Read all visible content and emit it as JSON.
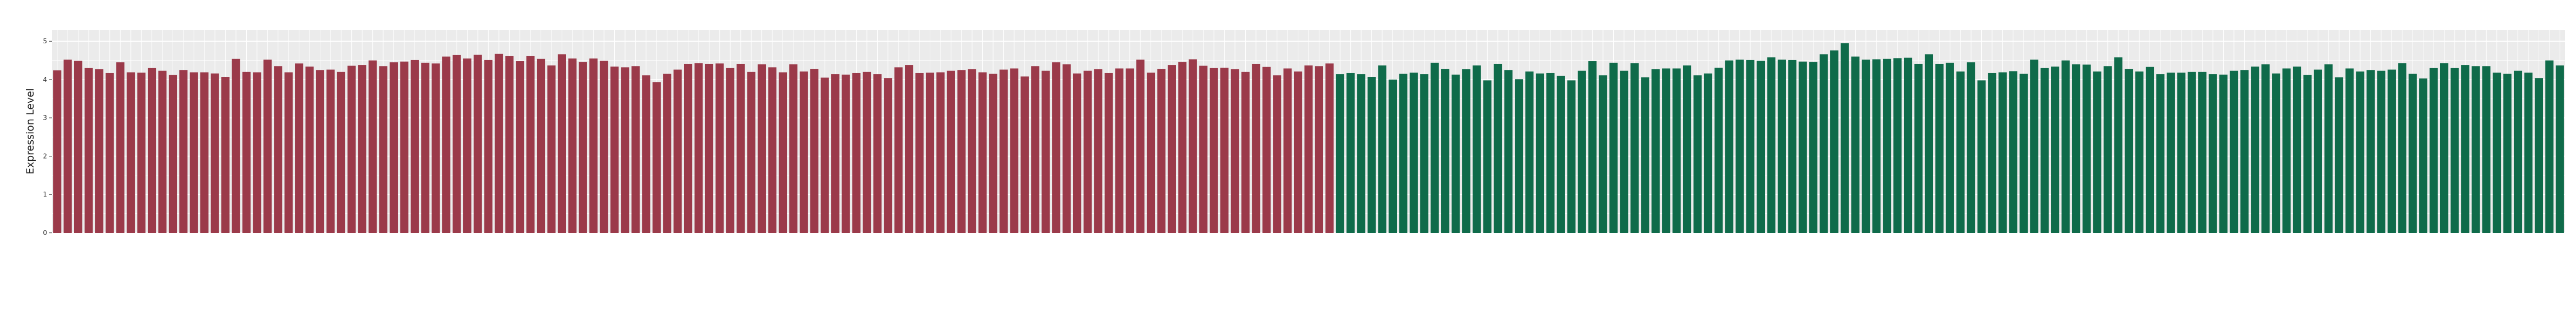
{
  "chart_data": {
    "type": "bar",
    "title": "",
    "xlabel": "",
    "ylabel": "Expression Level",
    "ylim": [
      0,
      5.3
    ],
    "yticks": [
      0,
      1,
      2,
      3,
      4,
      5
    ],
    "grid": true,
    "legend": "none",
    "colors": {
      "group_a": "#9b3a4a",
      "group_b": "#0f6b4a",
      "panel_bg": "#ebebeb",
      "grid": "#ffffff"
    },
    "series": [
      {
        "values": [
          4.24,
          4.52,
          4.49,
          4.3,
          4.27,
          4.17,
          4.45,
          4.19,
          4.18,
          4.3,
          4.23,
          4.12,
          4.25,
          4.19,
          4.19,
          4.16,
          4.07,
          4.54,
          4.2,
          4.19,
          4.52,
          4.35,
          4.19,
          4.42,
          4.34,
          4.25,
          4.26,
          4.2,
          4.36,
          4.38,
          4.5,
          4.35,
          4.45,
          4.47,
          4.51,
          4.44,
          4.42,
          4.6,
          4.64,
          4.55,
          4.65,
          4.51,
          4.67,
          4.62,
          4.48,
          4.62,
          4.54,
          4.37,
          4.66,
          4.55,
          4.46,
          4.55,
          4.49,
          4.34,
          4.32,
          4.35,
          4.11,
          3.93,
          4.15,
          4.26,
          4.41,
          4.43,
          4.41,
          4.42,
          4.3,
          4.41,
          4.2,
          4.4,
          4.32,
          4.19,
          4.4,
          4.21,
          4.28,
          4.05,
          4.14,
          4.13,
          4.17,
          4.2,
          4.14,
          4.04,
          4.32,
          4.38,
          4.17,
          4.18,
          4.19,
          4.23,
          4.25,
          4.27,
          4.19,
          4.15,
          4.26,
          4.29,
          4.08,
          4.35,
          4.23,
          4.45,
          4.4,
          4.16,
          4.23,
          4.27,
          4.17,
          4.29,
          4.29,
          4.52,
          4.18,
          4.28,
          4.38,
          4.46,
          4.53,
          4.36,
          4.3,
          4.31,
          4.27,
          4.2,
          4.41,
          4.33,
          4.11,
          4.29,
          4.21,
          4.37,
          4.35,
          4.42
        ]
      },
      {
        "values": [
          4.14,
          4.17,
          4.14,
          4.07,
          4.37,
          4.0,
          4.15,
          4.18,
          4.14,
          4.44,
          4.28,
          4.13,
          4.27,
          4.37,
          3.98,
          4.41,
          4.25,
          4.01,
          4.21,
          4.16,
          4.17,
          4.1,
          3.98,
          4.23,
          4.48,
          4.11,
          4.44,
          4.23,
          4.43,
          4.06,
          4.27,
          4.29,
          4.29,
          4.37,
          4.11,
          4.16,
          4.31,
          4.5,
          4.52,
          4.51,
          4.49,
          4.58,
          4.52,
          4.51,
          4.47,
          4.46,
          4.66,
          4.76,
          4.95,
          4.6,
          4.52,
          4.53,
          4.54,
          4.56,
          4.57,
          4.41,
          4.66,
          4.41,
          4.44,
          4.21,
          4.45,
          3.98,
          4.17,
          4.19,
          4.22,
          4.15,
          4.52,
          4.3,
          4.34,
          4.5,
          4.4,
          4.39,
          4.21,
          4.35,
          4.58,
          4.28,
          4.21,
          4.33,
          4.14,
          4.18,
          4.18,
          4.2,
          4.2,
          4.14,
          4.13,
          4.23,
          4.25,
          4.34,
          4.4,
          4.16,
          4.29,
          4.34,
          4.12,
          4.26,
          4.4,
          4.06,
          4.29,
          4.21,
          4.25,
          4.23,
          4.26,
          4.43,
          4.15,
          4.03,
          4.3,
          4.43,
          4.3,
          4.38,
          4.35,
          4.35,
          4.18,
          4.15,
          4.23,
          4.18,
          4.04,
          4.5,
          4.37
        ]
      }
    ]
  }
}
